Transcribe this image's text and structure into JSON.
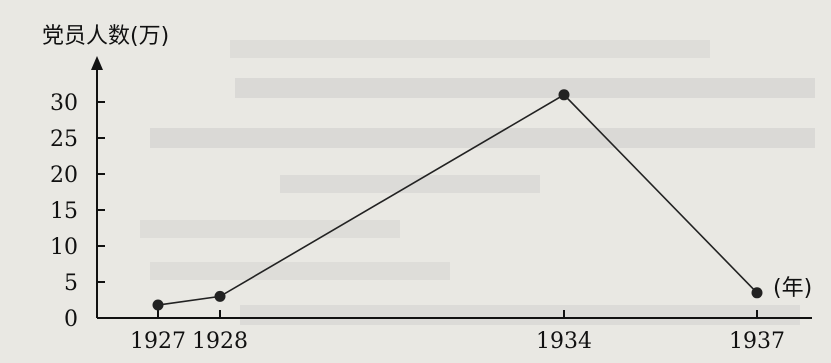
{
  "chart_data": {
    "type": "line",
    "ylabel": "党员人数(万)",
    "xlabel": "(年)",
    "x": [
      "1927",
      "1928",
      "1934",
      "1937"
    ],
    "values": [
      1.8,
      3,
      31,
      3.5
    ],
    "yticks": [
      0,
      5,
      10,
      15,
      20,
      25,
      30
    ],
    "ylim": [
      0,
      35
    ],
    "grid": false,
    "line_color": "#222222",
    "point_color": "#222222"
  }
}
